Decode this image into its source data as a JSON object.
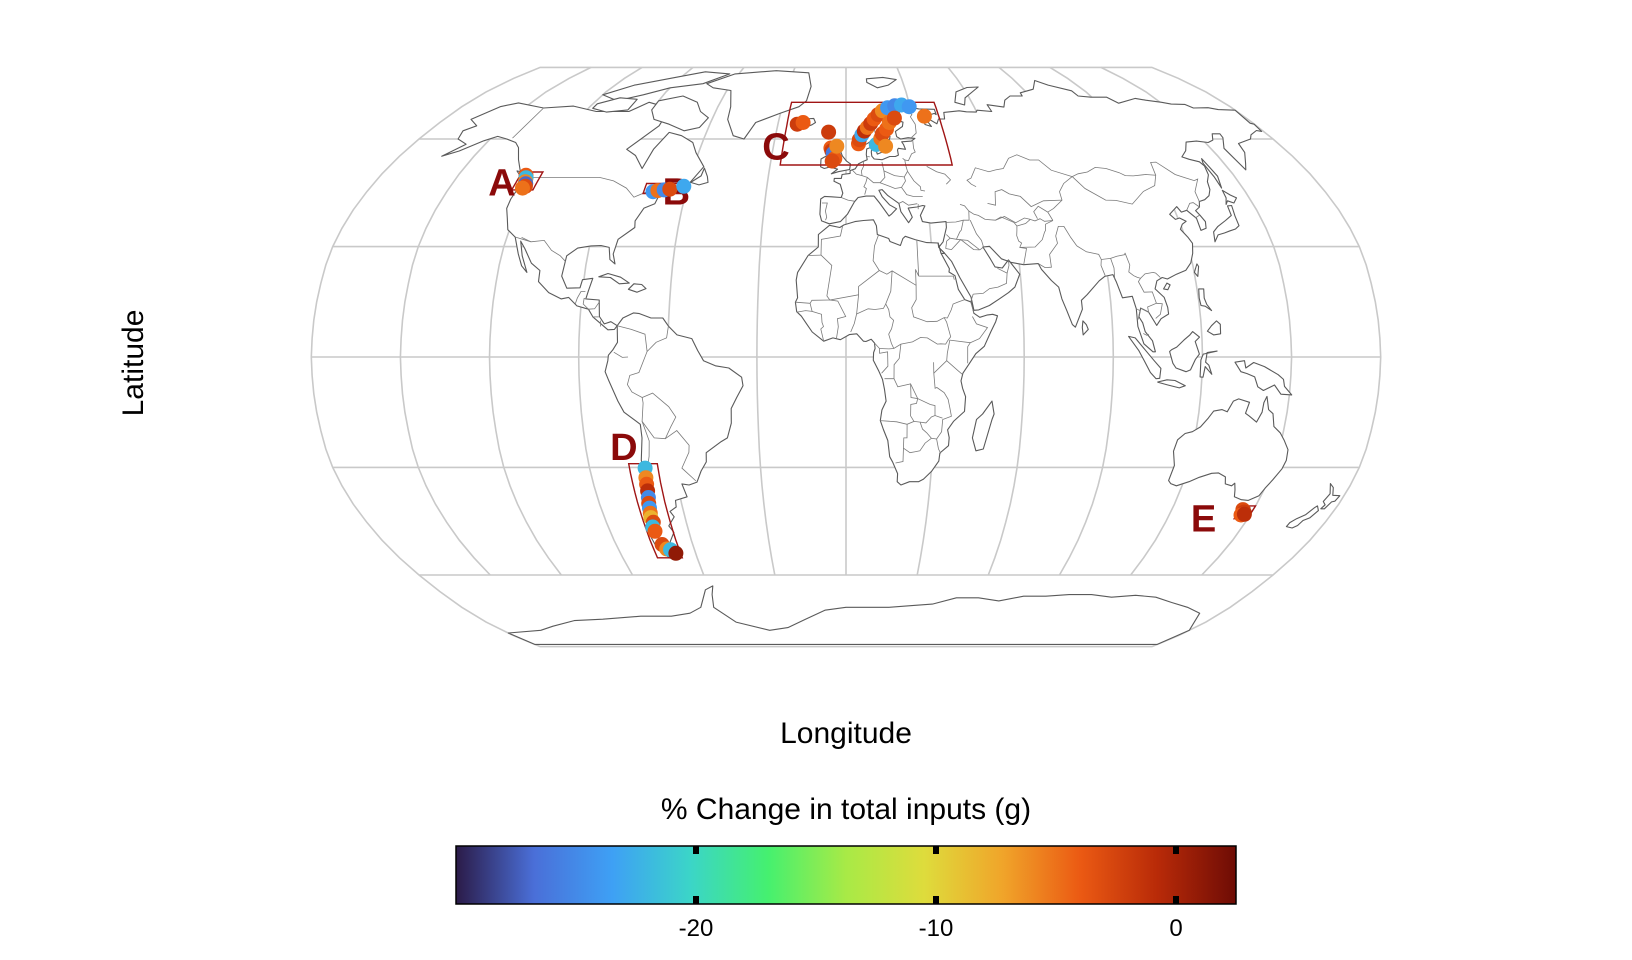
{
  "axes": {
    "xlabel": "Longitude",
    "ylabel": "Latitude"
  },
  "legend": {
    "title": "% Change in total inputs (g)",
    "ticks": [
      -20,
      -10,
      0
    ],
    "tick_labels": [
      "-20",
      "-10",
      "0"
    ],
    "range": [
      -30,
      2.5
    ],
    "colormap": [
      "#2b1b48",
      "#4a6fd8",
      "#3ea0f5",
      "#3bd5c8",
      "#45f06f",
      "#a8ea46",
      "#dedc3c",
      "#f0a52a",
      "#eb5a13",
      "#b82a08",
      "#6e0c05"
    ]
  },
  "regions": [
    {
      "label": "A"
    },
    {
      "label": "B"
    },
    {
      "label": "C"
    },
    {
      "label": "D"
    },
    {
      "label": "E"
    }
  ],
  "chart_data": {
    "type": "scatter",
    "projection": "Robinson",
    "xlabel": "Longitude",
    "ylabel": "Latitude",
    "color_variable": "% Change in total inputs (g)",
    "points": [
      {
        "lon": -123.8,
        "lat": 49.6,
        "value": -4,
        "region": "A"
      },
      {
        "lon": -123.2,
        "lat": 48.9,
        "value": -22,
        "region": "A"
      },
      {
        "lon": -122.6,
        "lat": 47.8,
        "value": -6,
        "region": "A"
      },
      {
        "lon": -122.0,
        "lat": 47.2,
        "value": -27,
        "region": "A"
      },
      {
        "lon": -121.6,
        "lat": 46.5,
        "value": -3,
        "region": "A"
      },
      {
        "lon": -122.3,
        "lat": 46.0,
        "value": -5,
        "region": "A"
      },
      {
        "lon": -72.5,
        "lat": 45.0,
        "value": -24,
        "region": "B"
      },
      {
        "lon": -70.8,
        "lat": 45.3,
        "value": -5,
        "region": "B"
      },
      {
        "lon": -68.5,
        "lat": 45.5,
        "value": -25,
        "region": "B"
      },
      {
        "lon": -66.5,
        "lat": 45.7,
        "value": -3,
        "region": "B"
      },
      {
        "lon": -61.5,
        "lat": 46.5,
        "value": -23,
        "region": "B"
      },
      {
        "lon": -21.5,
        "lat": 64.5,
        "value": -2,
        "region": "C"
      },
      {
        "lon": -19.0,
        "lat": 65.0,
        "value": -4,
        "region": "C"
      },
      {
        "lon": -7.5,
        "lat": 62.1,
        "value": -2,
        "region": "C"
      },
      {
        "lon": -6.2,
        "lat": 57.4,
        "value": -4,
        "region": "C"
      },
      {
        "lon": -5.8,
        "lat": 56.6,
        "value": -2,
        "region": "C"
      },
      {
        "lon": -5.2,
        "lat": 55.8,
        "value": -26,
        "region": "C"
      },
      {
        "lon": -4.5,
        "lat": 54.3,
        "value": -4,
        "region": "C"
      },
      {
        "lon": -5.5,
        "lat": 53.6,
        "value": -3,
        "region": "C"
      },
      {
        "lon": -3.8,
        "lat": 57.9,
        "value": -6,
        "region": "C"
      },
      {
        "lon": 5.2,
        "lat": 58.6,
        "value": -4,
        "region": "C"
      },
      {
        "lon": 5.6,
        "lat": 59.8,
        "value": -3,
        "region": "C"
      },
      {
        "lon": 6.8,
        "lat": 61.3,
        "value": -23,
        "region": "C"
      },
      {
        "lon": 7.9,
        "lat": 62.4,
        "value": -1,
        "region": "C"
      },
      {
        "lon": 9.3,
        "lat": 63.5,
        "value": -5,
        "region": "C"
      },
      {
        "lon": 10.9,
        "lat": 64.7,
        "value": -2,
        "region": "C"
      },
      {
        "lon": 12.6,
        "lat": 66.1,
        "value": -4,
        "region": "C"
      },
      {
        "lon": 14.6,
        "lat": 67.5,
        "value": -3,
        "region": "C"
      },
      {
        "lon": 16.8,
        "lat": 68.7,
        "value": -6,
        "region": "C"
      },
      {
        "lon": 19.4,
        "lat": 69.7,
        "value": -24,
        "region": "C"
      },
      {
        "lon": 22.9,
        "lat": 70.3,
        "value": -25,
        "region": "C"
      },
      {
        "lon": 26.2,
        "lat": 70.6,
        "value": -23,
        "region": "C"
      },
      {
        "lon": 29.6,
        "lat": 70.0,
        "value": -24,
        "region": "C"
      },
      {
        "lon": 12.6,
        "lat": 58.4,
        "value": -22,
        "region": "C"
      },
      {
        "lon": 14.7,
        "lat": 60.2,
        "value": -5,
        "region": "C"
      },
      {
        "lon": 15.6,
        "lat": 61.6,
        "value": -3,
        "region": "C"
      },
      {
        "lon": 17.6,
        "lat": 63.0,
        "value": -4,
        "region": "C"
      },
      {
        "lon": 16.4,
        "lat": 57.9,
        "value": -6,
        "region": "C"
      },
      {
        "lon": 19.2,
        "lat": 65.0,
        "value": -5,
        "region": "C"
      },
      {
        "lon": 21.8,
        "lat": 66.4,
        "value": -3,
        "region": "C"
      },
      {
        "lon": 35.5,
        "lat": 67.0,
        "value": -5,
        "region": "C"
      },
      {
        "lon": -70.5,
        "lat": -30.2,
        "value": -22,
        "region": "D"
      },
      {
        "lon": -70.9,
        "lat": -32.8,
        "value": -6,
        "region": "D"
      },
      {
        "lon": -71.1,
        "lat": -34.6,
        "value": -4,
        "region": "D"
      },
      {
        "lon": -71.3,
        "lat": -36.4,
        "value": -1,
        "region": "D"
      },
      {
        "lon": -71.6,
        "lat": -38.2,
        "value": -25,
        "region": "D"
      },
      {
        "lon": -72.0,
        "lat": -39.8,
        "value": -3,
        "region": "D"
      },
      {
        "lon": -72.2,
        "lat": -41.1,
        "value": -24,
        "region": "D"
      },
      {
        "lon": -72.5,
        "lat": -42.5,
        "value": -5,
        "region": "D"
      },
      {
        "lon": -72.8,
        "lat": -43.7,
        "value": -8,
        "region": "D"
      },
      {
        "lon": -72.4,
        "lat": -45.0,
        "value": -3,
        "region": "D"
      },
      {
        "lon": -73.2,
        "lat": -46.3,
        "value": -22,
        "region": "D"
      },
      {
        "lon": -72.9,
        "lat": -47.5,
        "value": -4,
        "region": "D"
      },
      {
        "lon": -72.0,
        "lat": -51.2,
        "value": -3,
        "region": "D"
      },
      {
        "lon": -70.9,
        "lat": -52.5,
        "value": -6,
        "region": "D"
      },
      {
        "lon": -69.5,
        "lat": -52.7,
        "value": -22,
        "region": "D"
      },
      {
        "lon": -67.9,
        "lat": -53.7,
        "value": 1,
        "region": "D"
      },
      {
        "lon": 146.2,
        "lat": -41.5,
        "value": -3,
        "region": "E"
      },
      {
        "lon": 147.2,
        "lat": -42.2,
        "value": -2,
        "region": "E"
      },
      {
        "lon": 146.7,
        "lat": -43.0,
        "value": -4,
        "region": "E"
      },
      {
        "lon": 147.8,
        "lat": -42.8,
        "value": -1,
        "region": "E"
      }
    ]
  }
}
